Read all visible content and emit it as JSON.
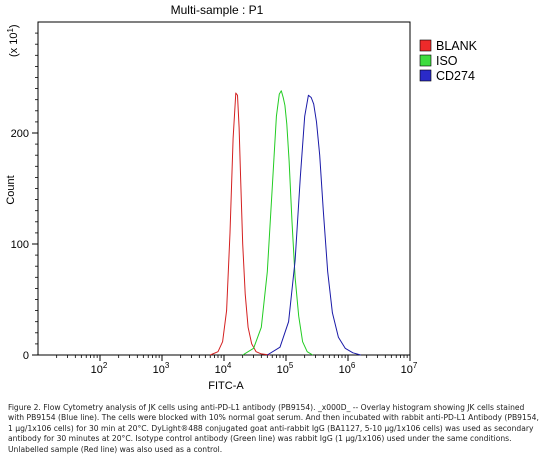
{
  "chart_data": {
    "type": "line",
    "title": "Multi-sample : P1",
    "xlabel": "FITC-A",
    "ylabel": "Count",
    "y_multiplier_label": "(x 10",
    "y_multiplier_exp": "1",
    "y_multiplier_close": ")",
    "x_scale": "log",
    "xlim": [
      10,
      10000000
    ],
    "ylim": [
      0,
      300
    ],
    "x_ticks": [
      {
        "value": 100,
        "base": "10",
        "exp": "2"
      },
      {
        "value": 1000,
        "base": "10",
        "exp": "3"
      },
      {
        "value": 10000,
        "base": "10",
        "exp": "4"
      },
      {
        "value": 100000,
        "base": "10",
        "exp": "5"
      },
      {
        "value": 1000000,
        "base": "10",
        "exp": "6"
      },
      {
        "value": 10000000,
        "base": "10",
        "exp": "7"
      }
    ],
    "y_ticks": [
      0,
      100,
      200
    ],
    "grid": false,
    "legend_position": "right",
    "series": [
      {
        "name": "BLANK",
        "color": "#d42020",
        "legend_color": "#ee2a2a",
        "x": [
          6000,
          8000,
          9500,
          11000,
          12500,
          14000,
          15500,
          16500,
          17500,
          18500,
          20000,
          22000,
          24500,
          28000,
          33000,
          40000,
          55000
        ],
        "y": [
          0,
          3,
          12,
          40,
          110,
          195,
          236,
          234,
          205,
          160,
          100,
          55,
          25,
          10,
          3,
          1,
          0
        ]
      },
      {
        "name": "ISO",
        "color": "#22cc22",
        "legend_color": "#3ddc3d",
        "x": [
          20000,
          30000,
          40000,
          50000,
          60000,
          70000,
          78000,
          84000,
          90000,
          96000,
          103000,
          112000,
          125000,
          140000,
          160000,
          185000,
          220000,
          270000
        ],
        "y": [
          0,
          6,
          25,
          75,
          150,
          215,
          235,
          238,
          232,
          225,
          208,
          175,
          120,
          70,
          35,
          12,
          3,
          0
        ]
      },
      {
        "name": "CD274",
        "color": "#1a1aa8",
        "legend_color": "#2a2ac8",
        "x": [
          50000,
          80000,
          110000,
          140000,
          170000,
          200000,
          230000,
          255000,
          280000,
          310000,
          350000,
          400000,
          470000,
          560000,
          700000,
          900000,
          1200000,
          1600000
        ],
        "y": [
          0,
          7,
          30,
          85,
          160,
          215,
          234,
          232,
          226,
          210,
          180,
          130,
          75,
          38,
          16,
          6,
          2,
          0
        ]
      }
    ]
  },
  "caption": "Figure 2. Flow Cytometry analysis of JK cells using anti-PD-L1 antibody (PB9154). _x000D_ -- Overlay histogram showing JK cells stained with PB9154 (Blue line). The cells were blocked with 10% normal goat serum. And then incubated with rabbit anti-PD-L1 Antibody (PB9154, 1 μg/1x106 cells) for 30 min at 20°C. DyLight®488 conjugated goat anti-rabbit IgG (BA1127, 5-10 μg/1x106 cells) was used as secondary antibody for 30 minutes at 20°C. Isotype control antibody (Green line) was rabbit IgG (1 μg/1x106) used under the same conditions. Unlabelled sample (Red line) was also used as a control."
}
